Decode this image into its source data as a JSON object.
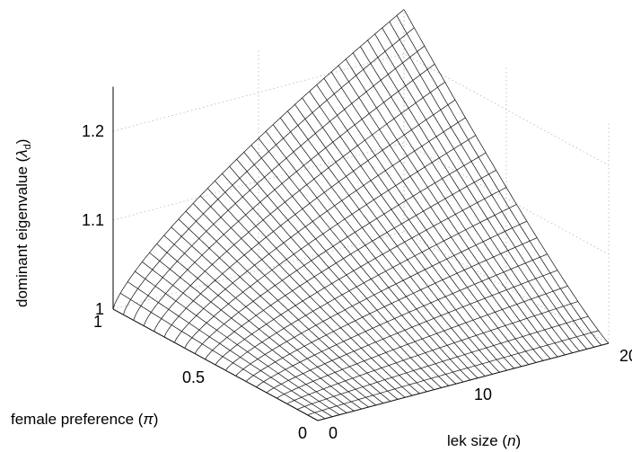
{
  "chart_data": {
    "type": "surface",
    "x": {
      "label_main": "lek size (",
      "label_var": "n",
      "label_end": ")",
      "range": [
        0,
        20
      ],
      "ticks": [
        "0",
        "10",
        "20"
      ],
      "tick_values": [
        0,
        10,
        20
      ]
    },
    "y": {
      "label_main": "female preference (",
      "label_var": "π",
      "label_end": ")",
      "range": [
        0,
        1
      ],
      "ticks": [
        "0",
        "0.5",
        "1"
      ],
      "tick_values": [
        0,
        0.5,
        1
      ]
    },
    "z": {
      "label_main": "dominant eigenvalue (",
      "label_var": "λ",
      "label_sub": "d",
      "label_end": ")",
      "range": [
        1,
        1.25
      ],
      "ticks": [
        "1",
        "1.1",
        "1.2"
      ],
      "tick_values": [
        1,
        1.1,
        1.2
      ]
    },
    "surface": {
      "description_model": "lambda rises with female preference and lek size",
      "n_grid": [
        0,
        20
      ],
      "pi_grid": [
        0,
        1
      ],
      "corner_values": {
        "n0_pi0": 1.0,
        "n0_pi1": 1.0,
        "n20_pi0": 1.0,
        "n20_pi1": 1.25
      }
    },
    "grid": true
  }
}
